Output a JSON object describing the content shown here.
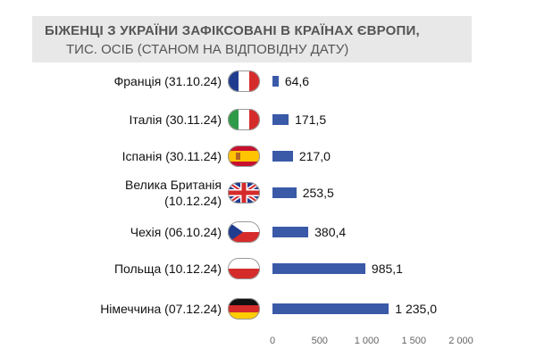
{
  "title": {
    "line1": "БІЖЕНЦІ З УКРАЇНИ ЗАФІКСОВАНІ В КРАЇНАХ ЄВРОПИ,",
    "line2": "ТИС. ОСІБ (СТАНОМ НА ВІДПОВІДНУ ДАТУ)"
  },
  "chart_data": {
    "type": "bar",
    "orientation": "horizontal",
    "title": "БІЖЕНЦІ З УКРАЇНИ ЗАФІКСОВАНІ В КРАЇНАХ ЄВРОПИ, ТИС. ОСІБ (СТАНОМ НА ВІДПОВІДНУ ДАТУ)",
    "categories": [
      "Франція (31.10.24)",
      "Італія (30.11.24)",
      "Іспанія (30.11.24)",
      "Велика Британія (10.12.24)",
      "Чехія (06.10.24)",
      "Польща (10.12.24)",
      "Німеччина (07.12.24)"
    ],
    "category_lines": [
      [
        "Франція (31.10.24)"
      ],
      [
        "Італія (30.11.24)"
      ],
      [
        "Іспанія (30.11.24)"
      ],
      [
        "Велика Британія",
        "(10.12.24)"
      ],
      [
        "Чехія (06.10.24)"
      ],
      [
        "Польща (10.12.24)"
      ],
      [
        "Німеччина (07.12.24)"
      ]
    ],
    "values": [
      64.6,
      171.5,
      217.0,
      253.5,
      380.4,
      985.1,
      1235.0
    ],
    "value_labels": [
      "64,6",
      "171,5",
      "217,0",
      "253,5",
      "380,4",
      "985,1",
      "1 235,0"
    ],
    "flags": [
      "flag-france-icon",
      "flag-italy-icon",
      "flag-spain-icon",
      "flag-uk-icon",
      "flag-czech-icon",
      "flag-poland-icon",
      "flag-germany-icon"
    ],
    "xlim": [
      0,
      2000
    ],
    "xticks": [
      0,
      500,
      1000,
      1500,
      2000
    ],
    "xtick_labels": [
      "0",
      "500",
      "1 000",
      "1 500",
      "2 000"
    ],
    "grid": false,
    "bar_color": "#3a5aa8"
  }
}
